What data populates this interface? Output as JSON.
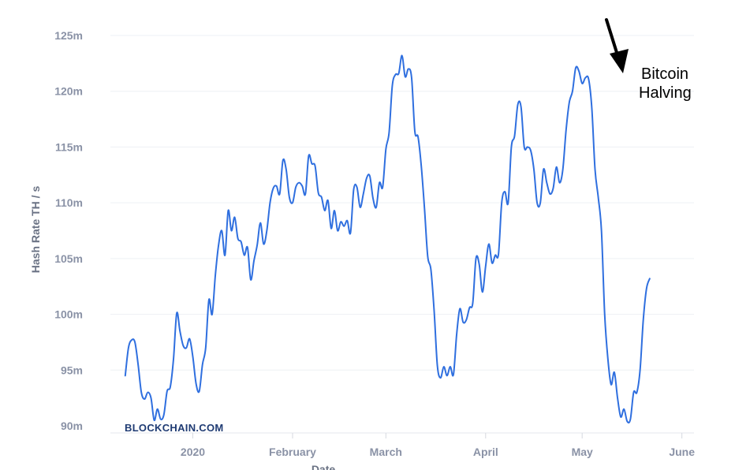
{
  "chart_data": {
    "type": "line",
    "xlabel": "Date",
    "ylabel": "Hash Rate TH / s",
    "ylim": [
      90,
      125
    ],
    "y_ticks": [
      {
        "value": 90,
        "label": "90m"
      },
      {
        "value": 95,
        "label": "95m"
      },
      {
        "value": 100,
        "label": "100m"
      },
      {
        "value": 105,
        "label": "105m"
      },
      {
        "value": 110,
        "label": "110m"
      },
      {
        "value": 115,
        "label": "115m"
      },
      {
        "value": 120,
        "label": "120m"
      },
      {
        "value": 125,
        "label": "125m"
      }
    ],
    "x_ticks": [
      {
        "date": "2020-01-01",
        "label": "2020"
      },
      {
        "date": "2020-02-01",
        "label": "February"
      },
      {
        "date": "2020-03-01",
        "label": "March"
      },
      {
        "date": "2020-04-01",
        "label": "April"
      },
      {
        "date": "2020-05-01",
        "label": "May"
      },
      {
        "date": "2020-06-01",
        "label": "June"
      }
    ],
    "grid": true,
    "line_color": "#2f6fdf",
    "series": [
      {
        "values": [
          [
            "2019-12-11",
            94.5
          ],
          [
            "2019-12-12",
            97.0
          ],
          [
            "2019-12-13",
            97.7
          ],
          [
            "2019-12-14",
            97.5
          ],
          [
            "2019-12-15",
            95.5
          ],
          [
            "2019-12-16",
            93.0
          ],
          [
            "2019-12-17",
            92.4
          ],
          [
            "2019-12-18",
            93.0
          ],
          [
            "2019-12-19",
            92.5
          ],
          [
            "2019-12-20",
            90.5
          ],
          [
            "2019-12-21",
            91.5
          ],
          [
            "2019-12-22",
            90.6
          ],
          [
            "2019-12-23",
            91.0
          ],
          [
            "2019-12-24",
            93.1
          ],
          [
            "2019-12-25",
            93.5
          ],
          [
            "2019-12-26",
            96.0
          ],
          [
            "2019-12-27",
            100.1
          ],
          [
            "2019-12-28",
            98.5
          ],
          [
            "2019-12-29",
            97.2
          ],
          [
            "2019-12-30",
            97.0
          ],
          [
            "2019-12-31",
            97.8
          ],
          [
            "2020-01-01",
            96.2
          ],
          [
            "2020-01-02",
            93.8
          ],
          [
            "2020-01-03",
            93.1
          ],
          [
            "2020-01-04",
            95.5
          ],
          [
            "2020-01-05",
            97.0
          ],
          [
            "2020-01-06",
            101.3
          ],
          [
            "2020-01-07",
            100.0
          ],
          [
            "2020-01-08",
            103.5
          ],
          [
            "2020-01-09",
            106.2
          ],
          [
            "2020-01-10",
            107.5
          ],
          [
            "2020-01-11",
            105.3
          ],
          [
            "2020-01-12",
            109.3
          ],
          [
            "2020-01-13",
            107.5
          ],
          [
            "2020-01-14",
            108.7
          ],
          [
            "2020-01-15",
            106.8
          ],
          [
            "2020-01-16",
            106.5
          ],
          [
            "2020-01-17",
            105.3
          ],
          [
            "2020-01-18",
            106.0
          ],
          [
            "2020-01-19",
            103.1
          ],
          [
            "2020-01-20",
            104.8
          ],
          [
            "2020-01-21",
            106.2
          ],
          [
            "2020-01-22",
            108.2
          ],
          [
            "2020-01-23",
            106.3
          ],
          [
            "2020-01-24",
            107.5
          ],
          [
            "2020-01-25",
            110.0
          ],
          [
            "2020-01-26",
            111.3
          ],
          [
            "2020-01-27",
            111.5
          ],
          [
            "2020-01-28",
            110.8
          ],
          [
            "2020-01-29",
            113.8
          ],
          [
            "2020-01-30",
            113.0
          ],
          [
            "2020-01-31",
            110.5
          ],
          [
            "2020-02-01",
            110.0
          ],
          [
            "2020-02-02",
            111.4
          ],
          [
            "2020-02-03",
            111.8
          ],
          [
            "2020-02-04",
            111.5
          ],
          [
            "2020-02-05",
            110.8
          ],
          [
            "2020-02-06",
            114.2
          ],
          [
            "2020-02-07",
            113.5
          ],
          [
            "2020-02-08",
            113.3
          ],
          [
            "2020-02-09",
            110.9
          ],
          [
            "2020-02-10",
            110.5
          ],
          [
            "2020-02-11",
            109.3
          ],
          [
            "2020-02-12",
            110.2
          ],
          [
            "2020-02-13",
            107.7
          ],
          [
            "2020-02-14",
            109.3
          ],
          [
            "2020-02-15",
            107.5
          ],
          [
            "2020-02-16",
            108.3
          ],
          [
            "2020-02-17",
            107.9
          ],
          [
            "2020-02-18",
            108.4
          ],
          [
            "2020-02-19",
            107.3
          ],
          [
            "2020-02-20",
            111.2
          ],
          [
            "2020-02-21",
            111.4
          ],
          [
            "2020-02-22",
            109.6
          ],
          [
            "2020-02-23",
            110.8
          ],
          [
            "2020-02-24",
            112.2
          ],
          [
            "2020-02-25",
            112.4
          ],
          [
            "2020-02-26",
            110.4
          ],
          [
            "2020-02-27",
            109.6
          ],
          [
            "2020-02-28",
            111.8
          ],
          [
            "2020-02-29",
            111.4
          ],
          [
            "2020-03-01",
            114.8
          ],
          [
            "2020-03-02",
            116.3
          ],
          [
            "2020-03-03",
            120.5
          ],
          [
            "2020-03-04",
            121.5
          ],
          [
            "2020-03-05",
            121.6
          ],
          [
            "2020-03-06",
            123.2
          ],
          [
            "2020-03-07",
            121.3
          ],
          [
            "2020-03-08",
            122.0
          ],
          [
            "2020-03-09",
            121.2
          ],
          [
            "2020-03-10",
            116.4
          ],
          [
            "2020-03-11",
            115.9
          ],
          [
            "2020-03-12",
            113.3
          ],
          [
            "2020-03-13",
            109.5
          ],
          [
            "2020-03-14",
            105.2
          ],
          [
            "2020-03-15",
            104.0
          ],
          [
            "2020-03-16",
            100.3
          ],
          [
            "2020-03-17",
            95.4
          ],
          [
            "2020-03-18",
            94.3
          ],
          [
            "2020-03-19",
            95.3
          ],
          [
            "2020-03-20",
            94.5
          ],
          [
            "2020-03-21",
            95.3
          ],
          [
            "2020-03-22",
            94.6
          ],
          [
            "2020-03-23",
            98.2
          ],
          [
            "2020-03-24",
            100.5
          ],
          [
            "2020-03-25",
            99.3
          ],
          [
            "2020-03-26",
            99.5
          ],
          [
            "2020-03-27",
            100.6
          ],
          [
            "2020-03-28",
            101.0
          ],
          [
            "2020-03-29",
            105.0
          ],
          [
            "2020-03-30",
            104.5
          ],
          [
            "2020-03-31",
            102.0
          ],
          [
            "2020-04-01",
            104.3
          ],
          [
            "2020-04-02",
            106.3
          ],
          [
            "2020-04-03",
            104.6
          ],
          [
            "2020-04-04",
            105.3
          ],
          [
            "2020-04-05",
            105.4
          ],
          [
            "2020-04-06",
            110.0
          ],
          [
            "2020-04-07",
            111.0
          ],
          [
            "2020-04-08",
            110.0
          ],
          [
            "2020-04-09",
            115.0
          ],
          [
            "2020-04-10",
            116.0
          ],
          [
            "2020-04-11",
            118.8
          ],
          [
            "2020-04-12",
            118.6
          ],
          [
            "2020-04-13",
            115.0
          ],
          [
            "2020-04-14",
            115.0
          ],
          [
            "2020-04-15",
            114.7
          ],
          [
            "2020-04-16",
            113.0
          ],
          [
            "2020-04-17",
            110.0
          ],
          [
            "2020-04-18",
            110.0
          ],
          [
            "2020-04-19",
            113.0
          ],
          [
            "2020-04-20",
            111.8
          ],
          [
            "2020-04-21",
            110.8
          ],
          [
            "2020-04-22",
            111.3
          ],
          [
            "2020-04-23",
            113.2
          ],
          [
            "2020-04-24",
            111.8
          ],
          [
            "2020-04-25",
            113.0
          ],
          [
            "2020-04-26",
            116.5
          ],
          [
            "2020-04-27",
            119.0
          ],
          [
            "2020-04-28",
            120.0
          ],
          [
            "2020-04-29",
            122.1
          ],
          [
            "2020-04-30",
            121.8
          ],
          [
            "2020-05-01",
            120.7
          ],
          [
            "2020-05-02",
            121.2
          ],
          [
            "2020-05-03",
            121.1
          ],
          [
            "2020-05-04",
            118.5
          ],
          [
            "2020-05-05",
            113.0
          ],
          [
            "2020-05-06",
            110.5
          ],
          [
            "2020-05-07",
            107.5
          ],
          [
            "2020-05-08",
            100.0
          ],
          [
            "2020-05-09",
            96.0
          ],
          [
            "2020-05-10",
            93.7
          ],
          [
            "2020-05-11",
            94.8
          ],
          [
            "2020-05-12",
            92.5
          ],
          [
            "2020-05-13",
            90.8
          ],
          [
            "2020-05-14",
            91.5
          ],
          [
            "2020-05-15",
            90.4
          ],
          [
            "2020-05-16",
            90.6
          ],
          [
            "2020-05-17",
            93.0
          ],
          [
            "2020-05-18",
            93.0
          ],
          [
            "2020-05-19",
            95.0
          ],
          [
            "2020-05-20",
            99.5
          ],
          [
            "2020-05-21",
            102.3
          ],
          [
            "2020-05-22",
            103.2
          ]
        ]
      }
    ],
    "watermark": "BLOCKCHAIN.COM",
    "annotation": {
      "lines": [
        "Bitcoin",
        "Halving"
      ],
      "date": "2020-05-02"
    }
  }
}
